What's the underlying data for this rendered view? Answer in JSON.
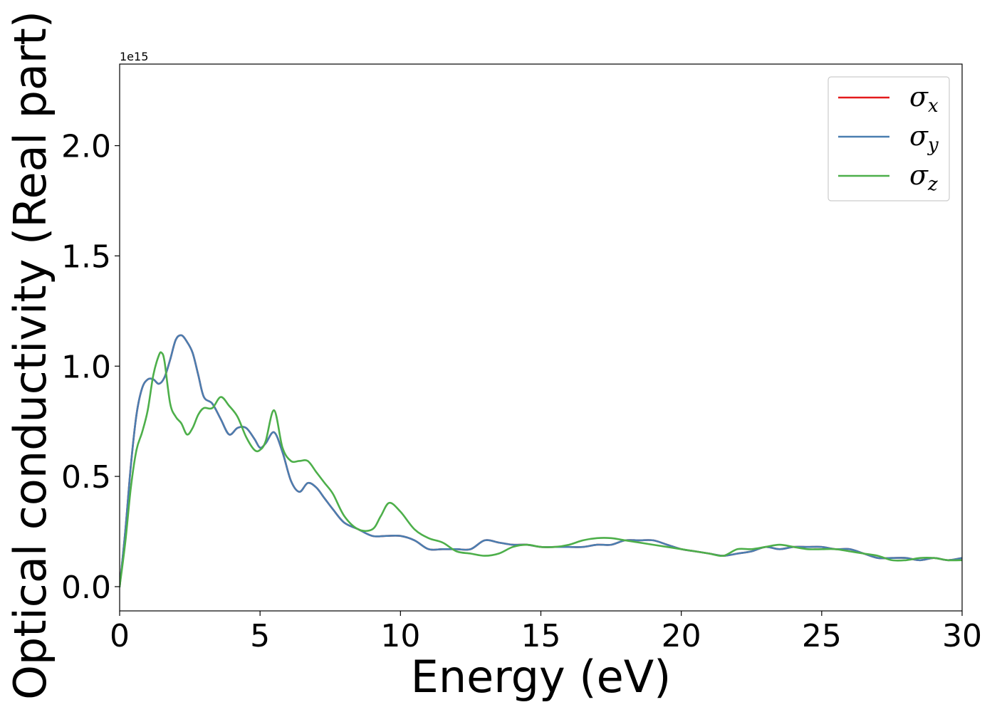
{
  "chart_data": {
    "type": "line",
    "title": "",
    "xlabel": "Energy (eV)",
    "ylabel": "Optical conductivity (Real part)",
    "y_offset_label": "1e15",
    "xlim": [
      0,
      30
    ],
    "ylim": [
      -0.11,
      2.37
    ],
    "xticks": [
      0,
      5,
      10,
      15,
      20,
      25,
      30
    ],
    "xtick_labels": [
      "0",
      "5",
      "10",
      "15",
      "20",
      "25",
      "30"
    ],
    "yticks": [
      0.0,
      0.5,
      1.0,
      1.5,
      2.0
    ],
    "ytick_labels": [
      "0.0",
      "0.5",
      "1.0",
      "1.5",
      "2.0"
    ],
    "grid": false,
    "legend_position": "top-right",
    "series": [
      {
        "name": "σx",
        "legend_symbol": "σ",
        "legend_sub": "x",
        "color": "#e41a1c",
        "x": [
          0,
          0.2,
          0.4,
          0.6,
          0.8,
          1.0,
          1.2,
          1.4,
          1.6,
          1.8,
          2.0,
          2.2,
          2.4,
          2.6,
          2.8,
          3.0,
          3.3,
          3.6,
          3.9,
          4.2,
          4.5,
          4.8,
          5.0,
          5.2,
          5.5,
          5.8,
          6.1,
          6.4,
          6.7,
          7.0,
          7.3,
          7.6,
          8.0,
          8.5,
          9.0,
          9.5,
          10.0,
          10.5,
          11.0,
          11.5,
          12.0,
          12.5,
          13.0,
          13.5,
          14.0,
          14.5,
          15.0,
          15.5,
          16.0,
          16.5,
          17.0,
          17.5,
          18.0,
          18.5,
          19.0,
          19.5,
          20.0,
          20.5,
          21.0,
          21.5,
          22.0,
          22.5,
          23.0,
          23.5,
          24.0,
          24.5,
          25.0,
          25.5,
          26.0,
          26.5,
          27.0,
          27.5,
          28.0,
          28.5,
          29.0,
          29.5,
          30.0
        ],
        "values": [
          0.0,
          0.25,
          0.55,
          0.78,
          0.9,
          0.94,
          0.94,
          0.92,
          0.95,
          1.03,
          1.12,
          1.14,
          1.11,
          1.06,
          0.96,
          0.86,
          0.83,
          0.76,
          0.69,
          0.72,
          0.72,
          0.67,
          0.63,
          0.65,
          0.7,
          0.61,
          0.48,
          0.43,
          0.47,
          0.45,
          0.4,
          0.35,
          0.29,
          0.26,
          0.23,
          0.23,
          0.23,
          0.21,
          0.17,
          0.17,
          0.17,
          0.17,
          0.21,
          0.2,
          0.19,
          0.19,
          0.18,
          0.18,
          0.18,
          0.18,
          0.19,
          0.19,
          0.21,
          0.21,
          0.21,
          0.19,
          0.17,
          0.16,
          0.15,
          0.14,
          0.15,
          0.16,
          0.18,
          0.17,
          0.18,
          0.18,
          0.18,
          0.17,
          0.17,
          0.15,
          0.13,
          0.13,
          0.13,
          0.12,
          0.13,
          0.12,
          0.13
        ]
      },
      {
        "name": "σy",
        "legend_symbol": "σ",
        "legend_sub": "y",
        "color": "#4a7eb0",
        "x": [
          0,
          0.2,
          0.4,
          0.6,
          0.8,
          1.0,
          1.2,
          1.4,
          1.6,
          1.8,
          2.0,
          2.2,
          2.4,
          2.6,
          2.8,
          3.0,
          3.3,
          3.6,
          3.9,
          4.2,
          4.5,
          4.8,
          5.0,
          5.2,
          5.5,
          5.8,
          6.1,
          6.4,
          6.7,
          7.0,
          7.3,
          7.6,
          8.0,
          8.5,
          9.0,
          9.5,
          10.0,
          10.5,
          11.0,
          11.5,
          12.0,
          12.5,
          13.0,
          13.5,
          14.0,
          14.5,
          15.0,
          15.5,
          16.0,
          16.5,
          17.0,
          17.5,
          18.0,
          18.5,
          19.0,
          19.5,
          20.0,
          20.5,
          21.0,
          21.5,
          22.0,
          22.5,
          23.0,
          23.5,
          24.0,
          24.5,
          25.0,
          25.5,
          26.0,
          26.5,
          27.0,
          27.5,
          28.0,
          28.5,
          29.0,
          29.5,
          30.0
        ],
        "values": [
          0.0,
          0.25,
          0.55,
          0.78,
          0.9,
          0.94,
          0.94,
          0.92,
          0.95,
          1.03,
          1.12,
          1.14,
          1.11,
          1.06,
          0.96,
          0.86,
          0.83,
          0.76,
          0.69,
          0.72,
          0.72,
          0.67,
          0.63,
          0.65,
          0.7,
          0.61,
          0.48,
          0.43,
          0.47,
          0.45,
          0.4,
          0.35,
          0.29,
          0.26,
          0.23,
          0.23,
          0.23,
          0.21,
          0.17,
          0.17,
          0.17,
          0.17,
          0.21,
          0.2,
          0.19,
          0.19,
          0.18,
          0.18,
          0.18,
          0.18,
          0.19,
          0.19,
          0.21,
          0.21,
          0.21,
          0.19,
          0.17,
          0.16,
          0.15,
          0.14,
          0.15,
          0.16,
          0.18,
          0.17,
          0.18,
          0.18,
          0.18,
          0.17,
          0.17,
          0.15,
          0.13,
          0.13,
          0.13,
          0.12,
          0.13,
          0.12,
          0.13
        ]
      },
      {
        "name": "σz",
        "legend_symbol": "σ",
        "legend_sub": "z",
        "color": "#4daf4a",
        "x": [
          0,
          0.2,
          0.4,
          0.6,
          0.8,
          1.0,
          1.2,
          1.4,
          1.5,
          1.6,
          1.8,
          2.0,
          2.2,
          2.4,
          2.6,
          2.8,
          3.0,
          3.3,
          3.6,
          3.9,
          4.2,
          4.5,
          4.8,
          5.0,
          5.2,
          5.5,
          5.8,
          6.1,
          6.4,
          6.7,
          7.0,
          7.3,
          7.6,
          8.0,
          8.5,
          9.0,
          9.3,
          9.6,
          10.0,
          10.5,
          11.0,
          11.5,
          12.0,
          12.5,
          13.0,
          13.5,
          14.0,
          14.5,
          15.0,
          15.5,
          16.0,
          16.5,
          17.0,
          17.5,
          18.0,
          18.5,
          19.0,
          19.5,
          20.0,
          20.5,
          21.0,
          21.5,
          22.0,
          22.5,
          23.0,
          23.5,
          24.0,
          24.5,
          25.0,
          25.5,
          26.0,
          26.5,
          27.0,
          27.5,
          28.0,
          28.5,
          29.0,
          29.5,
          30.0
        ],
        "values": [
          0.0,
          0.2,
          0.45,
          0.62,
          0.7,
          0.8,
          0.96,
          1.05,
          1.06,
          1.02,
          0.83,
          0.77,
          0.74,
          0.69,
          0.72,
          0.78,
          0.81,
          0.81,
          0.86,
          0.82,
          0.77,
          0.68,
          0.62,
          0.62,
          0.66,
          0.8,
          0.63,
          0.57,
          0.57,
          0.57,
          0.52,
          0.47,
          0.42,
          0.32,
          0.26,
          0.26,
          0.32,
          0.38,
          0.34,
          0.26,
          0.22,
          0.2,
          0.16,
          0.15,
          0.14,
          0.15,
          0.18,
          0.19,
          0.18,
          0.18,
          0.19,
          0.21,
          0.22,
          0.22,
          0.21,
          0.2,
          0.19,
          0.18,
          0.17,
          0.16,
          0.15,
          0.14,
          0.17,
          0.17,
          0.18,
          0.19,
          0.18,
          0.17,
          0.17,
          0.17,
          0.16,
          0.15,
          0.14,
          0.12,
          0.12,
          0.13,
          0.13,
          0.12,
          0.12
        ]
      }
    ]
  }
}
